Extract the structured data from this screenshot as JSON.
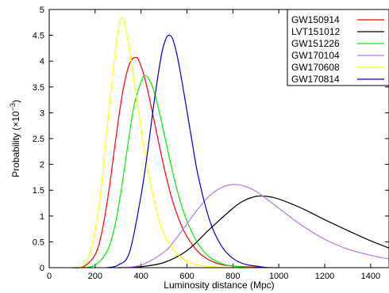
{
  "chart_data": {
    "type": "line",
    "xlabel": "Luminosity distance (Mpc)",
    "ylabel_main": "Probability (×10",
    "ylabel_exp": "−3",
    "ylabel_close": ")",
    "xlim": [
      0,
      1480
    ],
    "ylim": [
      0,
      5
    ],
    "xticks": [
      0,
      200,
      400,
      600,
      800,
      1000,
      1200,
      1400
    ],
    "yticks": [
      0,
      0.5,
      1,
      1.5,
      2,
      2.5,
      3,
      3.5,
      4,
      4.5,
      5
    ],
    "ytick_labels": [
      "0",
      "0.5",
      "1",
      "1.5",
      "2",
      "2.5",
      "3",
      "3.5",
      "4",
      "4.5",
      "5"
    ],
    "legend_position": "top-right",
    "series": [
      {
        "name": "GW150914",
        "color": "#ff0000",
        "x": [
          100,
          150,
          200,
          230,
          260,
          290,
          320,
          350,
          380,
          400,
          420,
          450,
          480,
          510,
          540,
          570,
          600,
          650,
          700,
          750,
          800,
          900,
          1000
        ],
        "y": [
          0,
          0.02,
          0.25,
          0.7,
          1.5,
          2.5,
          3.4,
          3.95,
          4.07,
          3.9,
          3.6,
          3.0,
          2.35,
          1.75,
          1.25,
          0.88,
          0.6,
          0.3,
          0.14,
          0.06,
          0.03,
          0.01,
          0
        ]
      },
      {
        "name": "LVT151012",
        "color": "#000000",
        "x": [
          300,
          400,
          500,
          600,
          700,
          800,
          850,
          900,
          950,
          1000,
          1100,
          1200,
          1300,
          1400,
          1480
        ],
        "y": [
          0,
          0.02,
          0.1,
          0.33,
          0.75,
          1.15,
          1.3,
          1.38,
          1.38,
          1.33,
          1.15,
          0.93,
          0.72,
          0.52,
          0.38
        ]
      },
      {
        "name": "GW151226",
        "color": "#00ee00",
        "x": [
          150,
          200,
          250,
          280,
          310,
          340,
          370,
          400,
          420,
          450,
          480,
          510,
          540,
          570,
          600,
          650,
          700,
          750,
          800,
          900
        ],
        "y": [
          0,
          0.05,
          0.3,
          0.7,
          1.4,
          2.3,
          3.15,
          3.6,
          3.72,
          3.5,
          3.0,
          2.4,
          1.8,
          1.3,
          0.9,
          0.45,
          0.2,
          0.08,
          0.03,
          0
        ]
      },
      {
        "name": "GW170104",
        "color": "#bb77ee",
        "x": [
          300,
          400,
          500,
          550,
          600,
          650,
          700,
          750,
          800,
          850,
          900,
          950,
          1000,
          1100,
          1200,
          1300,
          1400,
          1480
        ],
        "y": [
          0,
          0.05,
          0.3,
          0.55,
          0.85,
          1.15,
          1.4,
          1.55,
          1.61,
          1.58,
          1.48,
          1.32,
          1.15,
          0.82,
          0.55,
          0.36,
          0.24,
          0.17
        ]
      },
      {
        "name": "GW170608",
        "color": "#ffff00",
        "x": [
          130,
          160,
          190,
          220,
          250,
          280,
          300,
          315,
          330,
          350,
          380,
          410,
          440,
          470,
          500,
          550,
          600,
          650,
          700,
          800
        ],
        "y": [
          0,
          0.1,
          0.5,
          1.3,
          2.6,
          3.9,
          4.6,
          4.85,
          4.7,
          4.2,
          3.3,
          2.4,
          1.65,
          1.05,
          0.65,
          0.3,
          0.12,
          0.05,
          0.02,
          0
        ]
      },
      {
        "name": "GW170814",
        "color": "#0000cc",
        "x": [
          250,
          300,
          350,
          400,
          430,
          460,
          490,
          510,
          525,
          540,
          560,
          590,
          620,
          650,
          700,
          750,
          800,
          850,
          900,
          950
        ],
        "y": [
          0,
          0.05,
          0.3,
          1.4,
          2.3,
          3.3,
          4.15,
          4.45,
          4.5,
          4.4,
          4.05,
          3.3,
          2.5,
          1.75,
          0.9,
          0.42,
          0.18,
          0.07,
          0.03,
          0
        ]
      }
    ]
  }
}
